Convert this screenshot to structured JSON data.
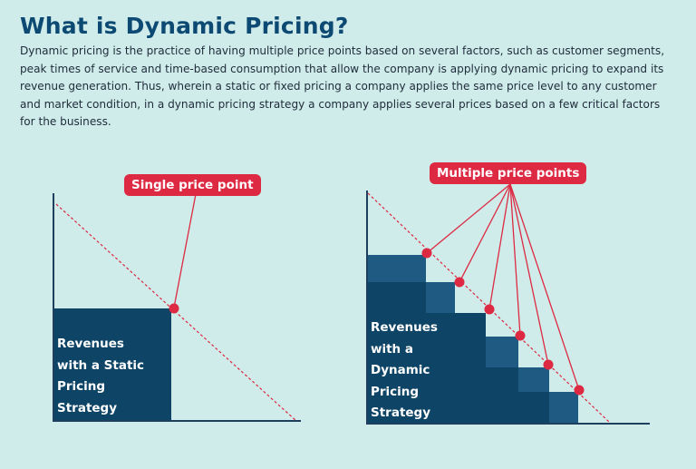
{
  "title": "What is Dynamic Pricing?",
  "description": "Dynamic pricing is the practice of having multiple price points based on several factors, such as customer segments, peak times of service and time-based consumption that allow the company is applying dynamic pricing to expand its revenue generation. Thus, wherein a static or fixed pricing a company applies the same price level to any customer and market condition, in a dynamic pricing strategy a company applies several prices based on a few critical factors for the business.",
  "left_diagram": {
    "callout": "Single price point",
    "revenue_lines": [
      "Revenues",
      "with a Static",
      "Pricing",
      "Strategy"
    ]
  },
  "right_diagram": {
    "callout": "Multiple price points",
    "revenue_lines": [
      "Revenues",
      "with a",
      "Dynamic",
      "Pricing",
      "Strategy"
    ],
    "price_point_count": 6
  },
  "colors": {
    "background": "#cfecea",
    "title": "#0d4a73",
    "dark_block": "#0e4466",
    "step_block": "#1e5a82",
    "accent_red": "#dd2942",
    "axis": "#1f3f5f"
  }
}
